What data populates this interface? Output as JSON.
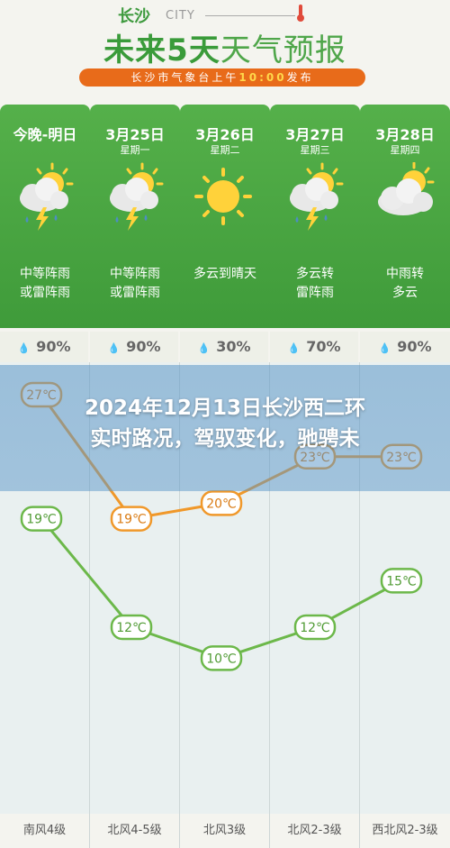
{
  "header": {
    "city_cn": "长沙",
    "city_en": "CITY",
    "title_part1": "未来5天",
    "title_part2": "天气预报",
    "banner_prefix": "长沙市气象台上午",
    "banner_time": "10:00",
    "banner_suffix": "发布"
  },
  "days": [
    {
      "name": "今晚-明日",
      "weekday": "",
      "icon": "sun-cloud-thunder-rain-icon",
      "desc1": "中等阵雨",
      "desc2": "或雷阵雨",
      "humidity": "90%",
      "high": "27℃",
      "low": "19℃",
      "wind": "南风4级"
    },
    {
      "name": "3月25日",
      "weekday": "星期一",
      "icon": "sun-cloud-thunder-rain-icon",
      "desc1": "中等阵雨",
      "desc2": "或雷阵雨",
      "humidity": "90%",
      "high": "19℃",
      "low": "12℃",
      "wind": "北风4-5级"
    },
    {
      "name": "3月26日",
      "weekday": "星期二",
      "icon": "sun-icon",
      "desc1": "多云到晴天",
      "desc2": "",
      "humidity": "30%",
      "high": "20℃",
      "low": "10℃",
      "wind": "北风3级"
    },
    {
      "name": "3月27日",
      "weekday": "星期三",
      "icon": "sun-cloud-thunder-rain-icon",
      "desc1": "多云转",
      "desc2": "雷阵雨",
      "humidity": "70%",
      "high": "23℃",
      "low": "12℃",
      "wind": "北风2-3级"
    },
    {
      "name": "3月28日",
      "weekday": "星期四",
      "icon": "sun-cloud-icon",
      "desc1": "中雨转",
      "desc2": "多云",
      "humidity": "90%",
      "high": "23℃",
      "low": "15℃",
      "wind": "西北风2-3级"
    }
  ],
  "chart_data": {
    "type": "line",
    "categories": [
      "今晚-明日",
      "3月25日",
      "3月26日",
      "3月27日",
      "3月28日"
    ],
    "series": [
      {
        "values": [
          27,
          19,
          20,
          23,
          23
        ],
        "color": "#f0982a"
      },
      {
        "values": [
          19,
          12,
          10,
          12,
          15
        ],
        "color": "#6cb84a"
      }
    ],
    "ylim": [
      8,
      28
    ]
  },
  "overlay": {
    "headline_line1": "2024年12月13日长沙西二环",
    "headline_line2": "实时路况，驾驭变化，驰骋未"
  },
  "colors": {
    "green": "#4aa542",
    "orange": "#e86b1a",
    "overlay": "#5a96c8"
  }
}
